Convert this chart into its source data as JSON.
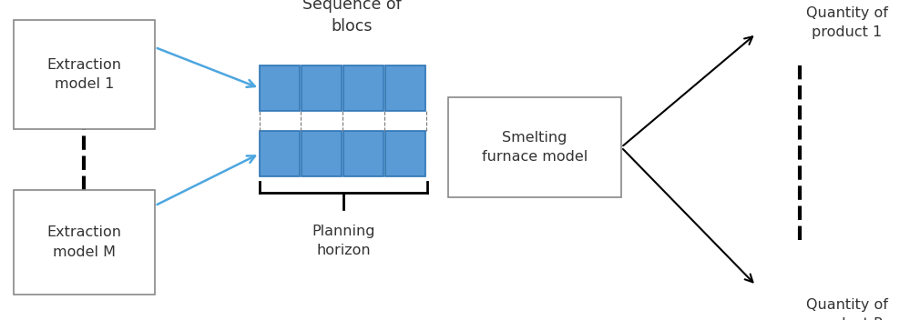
{
  "bg_color": "#ffffff",
  "box_color": "#ffffff",
  "box_edge": "#888888",
  "blue_fill": "#5b9bd5",
  "blue_edge": "#2e75b6",
  "text_color": "#333333",
  "label_sequence": "Sequence of\nblocs",
  "label_smelting": "Smelting\nfurnace model",
  "label_extr1": "Extraction\nmodel 1",
  "label_extrM": "Extraction\nmodel M",
  "label_planning": "Planning\nhorizon",
  "label_qty1": "Quantity of\nproduct 1",
  "label_qtyP": "Quantity of\nproduct P",
  "fontsize": 11.5,
  "n_blocks": 4
}
